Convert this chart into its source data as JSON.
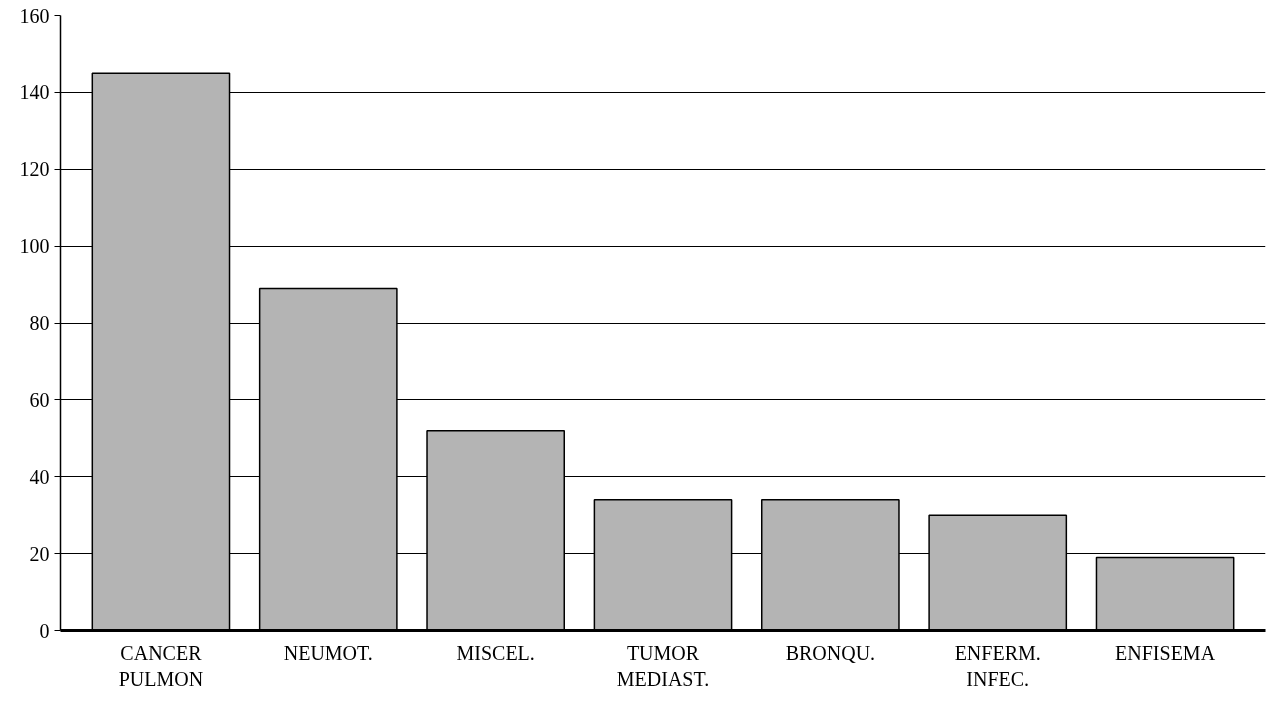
{
  "chart_data": {
    "type": "bar",
    "categories": [
      "CANCER\nPULMON",
      "NEUMOT.",
      "MISCEL.",
      "TUMOR\nMEDIAST.",
      "BRONQU.",
      "ENFERM.\nINFEC.",
      "ENFISEMA"
    ],
    "values": [
      145,
      89,
      52,
      34,
      34,
      30,
      19
    ],
    "color": "#b4b4b4",
    "ylim": [
      0,
      160
    ],
    "yticks": [
      0,
      20,
      40,
      60,
      80,
      100,
      120,
      140,
      160
    ],
    "grid": "y"
  }
}
